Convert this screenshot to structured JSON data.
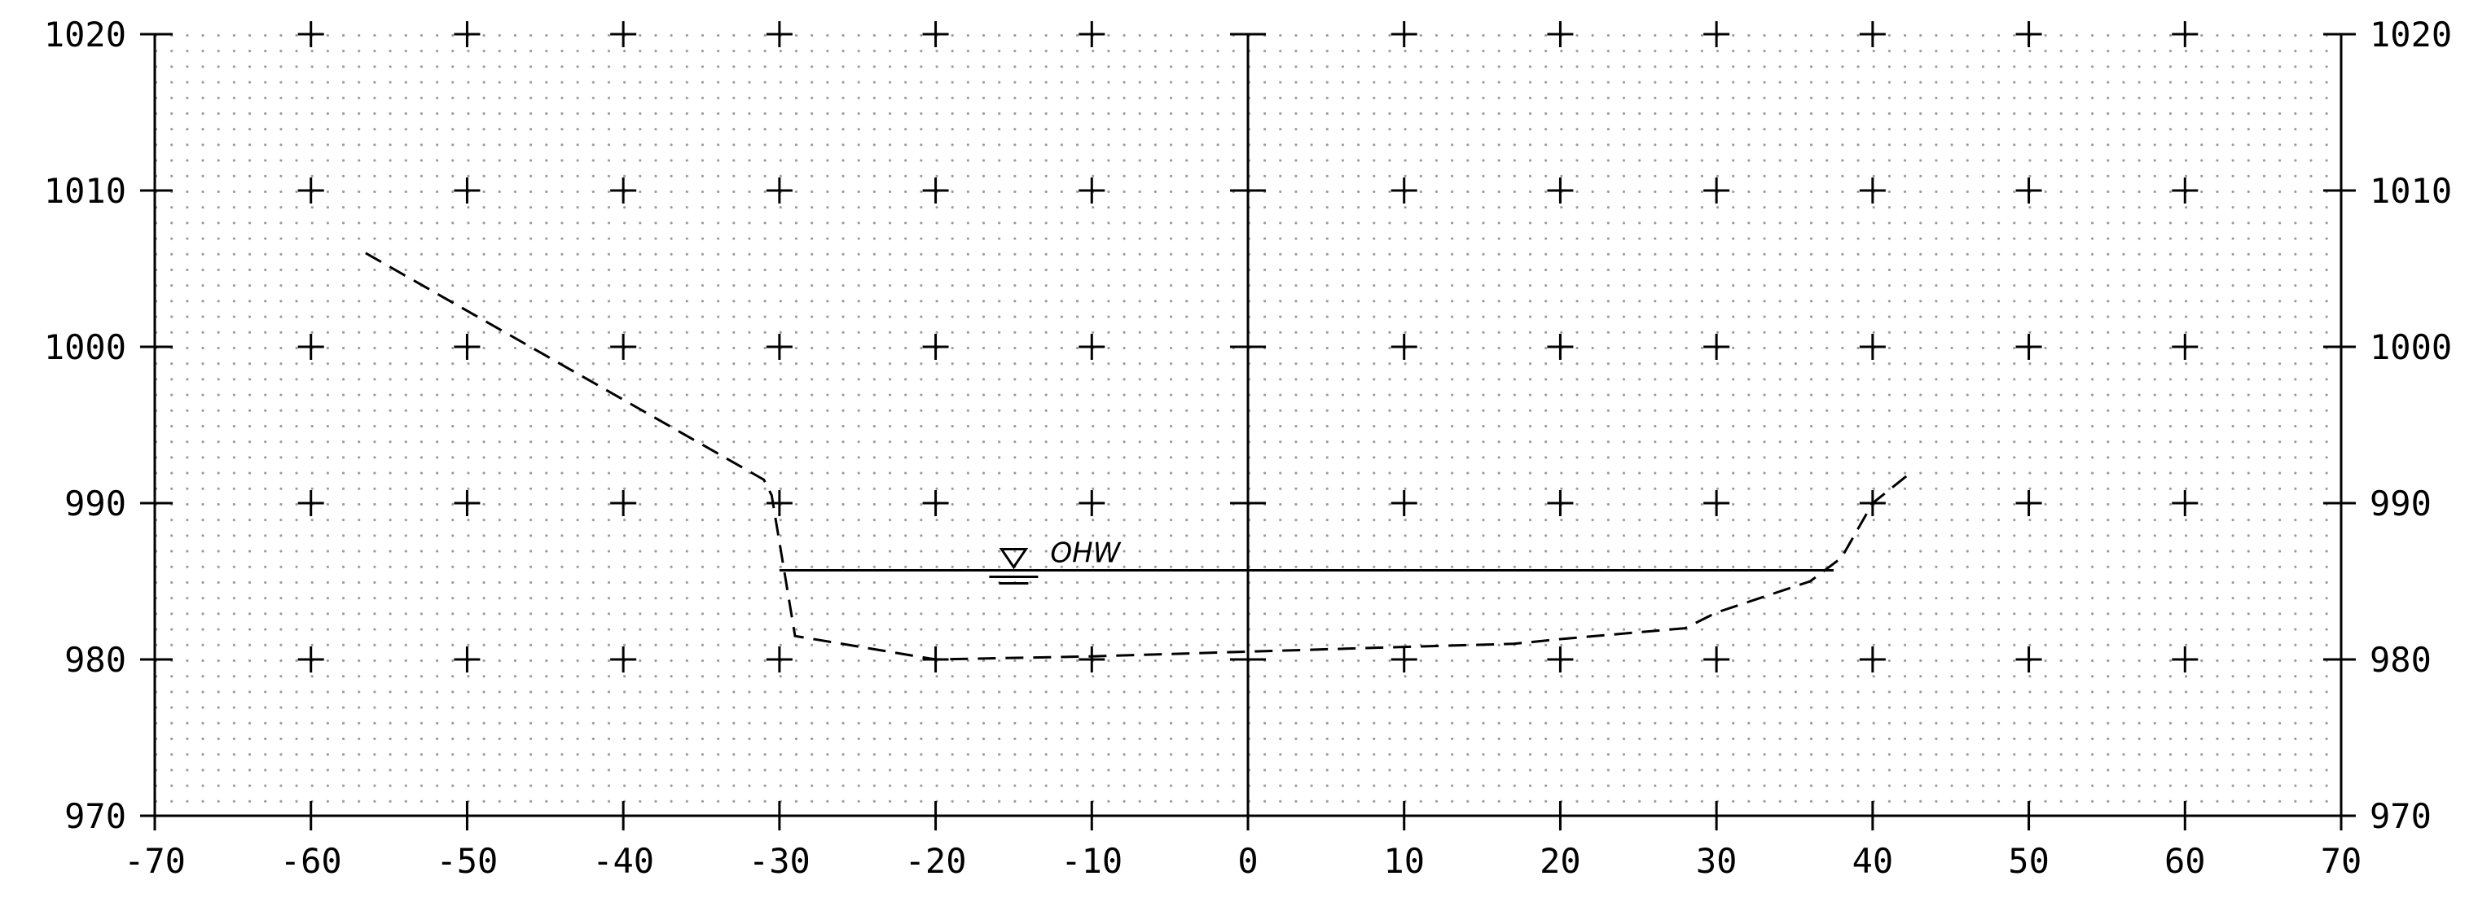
{
  "chart_data": {
    "type": "line",
    "title": "",
    "xlabel": "",
    "ylabel": "",
    "xlim": [
      -70,
      70
    ],
    "ylim": [
      970,
      1020
    ],
    "x_ticks": [
      "-70",
      "-60",
      "-50",
      "-40",
      "-30",
      "-20",
      "-10",
      "0",
      "10",
      "20",
      "30",
      "40",
      "50",
      "60",
      "70"
    ],
    "y_ticks_left": [
      "970",
      "980",
      "990",
      "1000",
      "1010",
      "1020"
    ],
    "y_ticks_right": [
      "970",
      "980",
      "990",
      "1000",
      "1010",
      "1020"
    ],
    "grid": "dotted",
    "series": [
      {
        "style": "dashed",
        "x": [
          -56.5,
          -31,
          -30.5,
          -29,
          -20,
          -10,
          0,
          10,
          17,
          20,
          28,
          30,
          36,
          38,
          40,
          42.5
        ],
        "y": [
          1006,
          991.5,
          990.5,
          981.5,
          980,
          980.2,
          980.5,
          980.8,
          981,
          981.3,
          982,
          983,
          985,
          986.5,
          990,
          992
        ]
      }
    ],
    "water_surface": {
      "label": "OHW",
      "elevation": 985.7,
      "x_start": -30,
      "x_end": 37.5,
      "symbol_x": -15
    }
  }
}
